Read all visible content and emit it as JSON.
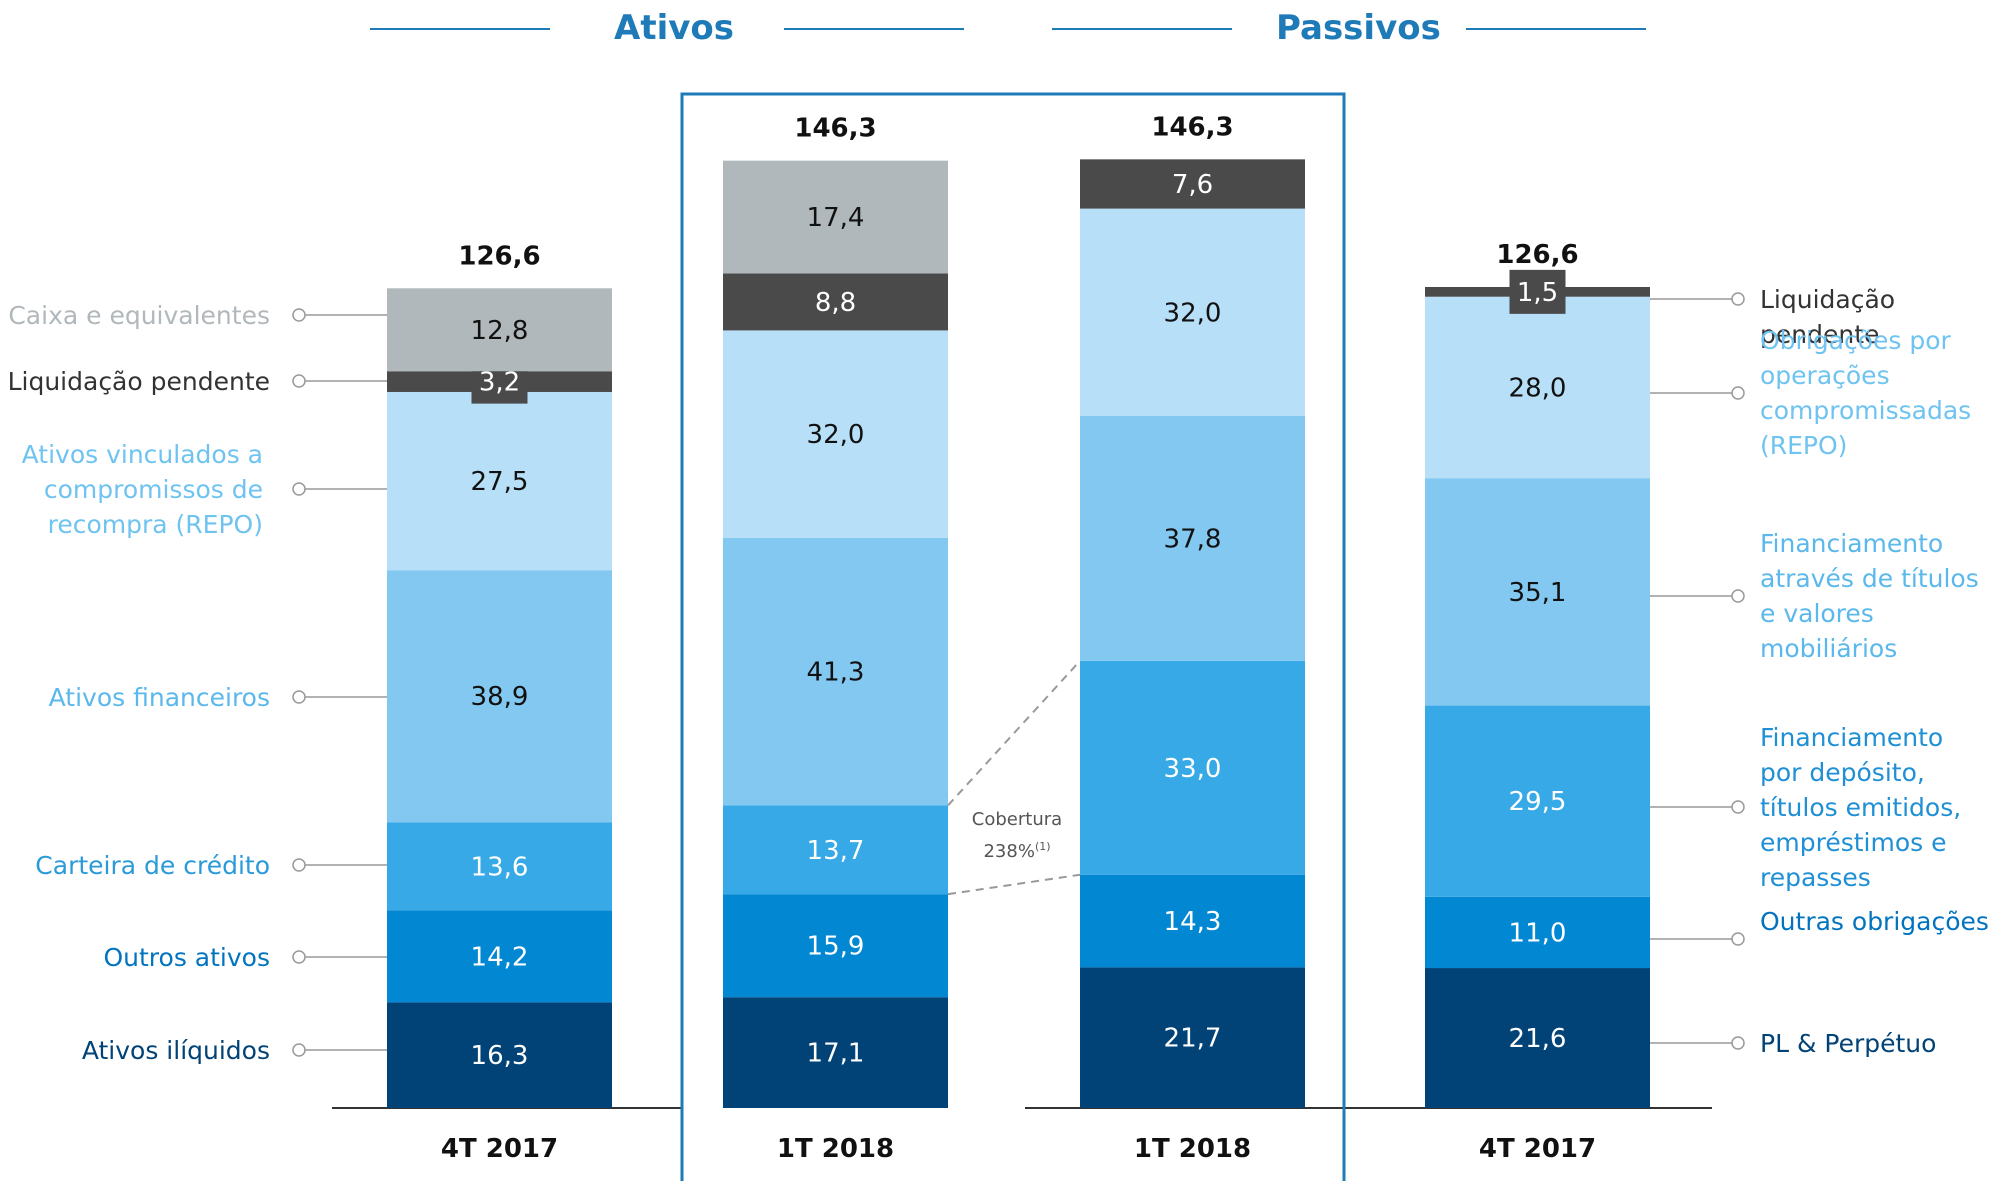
{
  "headers": {
    "ativos": "Ativos",
    "passivos": "Passivos"
  },
  "colors": {
    "caixa": "#b1b8bc",
    "liquidacao": "#4a4a4a",
    "repo": "#b7dff7",
    "financeiros": "#82c8f0",
    "credito": "#36a9e6",
    "outros": "#0287d3",
    "iliquidos": "#024377",
    "accent": "#1f7ab8"
  },
  "chart_data": {
    "type": "bar",
    "stacked": true,
    "categories": [
      "4T 2017",
      "1T 2018",
      "1T 2018",
      "4T 2017"
    ],
    "totals": [
      "126,6",
      "146,3",
      "146,3",
      "126,6"
    ],
    "ylim": [
      0,
      146.3
    ],
    "groups": [
      {
        "name": "Ativos",
        "columns": [
          0,
          1
        ]
      },
      {
        "name": "Passivos",
        "columns": [
          2,
          3
        ]
      }
    ],
    "highlighted_columns": [
      1,
      2
    ],
    "columns": [
      {
        "segments": [
          {
            "key": "iliquidos",
            "value": 16.3,
            "label": "16,3"
          },
          {
            "key": "outros",
            "value": 14.2,
            "label": "14,2"
          },
          {
            "key": "credito",
            "value": 13.6,
            "label": "13,6"
          },
          {
            "key": "financeiros",
            "value": 38.9,
            "label": "38,9"
          },
          {
            "key": "repo",
            "value": 27.5,
            "label": "27,5"
          },
          {
            "key": "liquidacao",
            "value": 3.2,
            "label": "3,2",
            "boxed": true
          },
          {
            "key": "caixa",
            "value": 12.8,
            "label": "12,8"
          }
        ]
      },
      {
        "segments": [
          {
            "key": "iliquidos",
            "value": 17.1,
            "label": "17,1"
          },
          {
            "key": "outros",
            "value": 15.9,
            "label": "15,9"
          },
          {
            "key": "credito",
            "value": 13.7,
            "label": "13,7"
          },
          {
            "key": "financeiros",
            "value": 41.3,
            "label": "41,3"
          },
          {
            "key": "repo",
            "value": 32.0,
            "label": "32,0"
          },
          {
            "key": "liquidacao",
            "value": 8.8,
            "label": "8,8"
          },
          {
            "key": "caixa",
            "value": 17.4,
            "label": "17,4"
          }
        ]
      },
      {
        "segments": [
          {
            "key": "iliquidos",
            "value": 21.7,
            "label": "21,7"
          },
          {
            "key": "outros",
            "value": 14.3,
            "label": "14,3"
          },
          {
            "key": "credito",
            "value": 33.0,
            "label": "33,0"
          },
          {
            "key": "financeiros",
            "value": 37.8,
            "label": "37,8"
          },
          {
            "key": "repo",
            "value": 32.0,
            "label": "32,0"
          },
          {
            "key": "liquidacao",
            "value": 7.6,
            "label": "7,6"
          }
        ]
      },
      {
        "segments": [
          {
            "key": "iliquidos",
            "value": 21.6,
            "label": "21,6"
          },
          {
            "key": "outros",
            "value": 11.0,
            "label": "11,0"
          },
          {
            "key": "credito",
            "value": 29.5,
            "label": "29,5"
          },
          {
            "key": "financeiros",
            "value": 35.1,
            "label": "35,1"
          },
          {
            "key": "repo",
            "value": 28.0,
            "label": "28,0"
          },
          {
            "key": "liquidacao",
            "value": 1.5,
            "label": "1,5",
            "boxed": true
          }
        ]
      }
    ],
    "left_labels": [
      {
        "key": "caixa",
        "text": "Caixa e equivalentes"
      },
      {
        "key": "liquidacao",
        "text": "Liquidação pendente"
      },
      {
        "key": "repo",
        "text": "Ativos vinculados a compromissos de recompra (REPO)"
      },
      {
        "key": "financeiros",
        "text": "Ativos financeiros"
      },
      {
        "key": "credito",
        "text": "Carteira de crédito"
      },
      {
        "key": "outros",
        "text": "Outros ativos"
      },
      {
        "key": "iliquidos",
        "text": "Ativos ilíquidos"
      }
    ],
    "right_labels": [
      {
        "key": "liquidacao",
        "text": "Liquidação pendente"
      },
      {
        "key": "repo",
        "text": "Obrigações por operações compromissadas (REPO)"
      },
      {
        "key": "financeiros",
        "text": "Financiamento através de títulos e valores mobiliários"
      },
      {
        "key": "credito",
        "text": "Financiamento por depósito, títulos emitidos, empréstimos e repasses"
      },
      {
        "key": "outros",
        "text": "Outras obrigações"
      },
      {
        "key": "iliquidos",
        "text": "PL & Perpétuo"
      }
    ],
    "annotation": {
      "text": "Cobertura",
      "value": "238%",
      "note": "(1)"
    }
  }
}
